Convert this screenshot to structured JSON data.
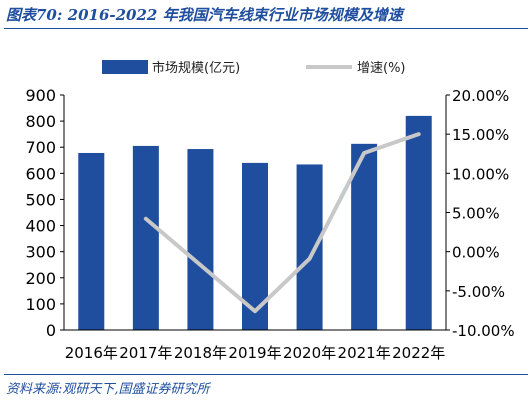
{
  "header": {
    "title": "图表70:  2016-2022 年我国汽车线束行业市场规模及增速"
  },
  "footer": {
    "source": "资料来源:观研天下,国盛证券研究所"
  },
  "colors": {
    "bar": "#1f4e9e",
    "line": "#c8c8c8",
    "accent": "#1f4e9e"
  },
  "chart_data": {
    "type": "bar",
    "categories": [
      "2016年",
      "2017年",
      "2018年",
      "2019年",
      "2020年",
      "2021年",
      "2022年"
    ],
    "series": [
      {
        "name": "市场规模(亿元)",
        "type": "bar",
        "axis": "left",
        "values": [
          678,
          705,
          693,
          640,
          634,
          713,
          820
        ]
      },
      {
        "name": "增速(%)",
        "type": "line",
        "axis": "right",
        "values": [
          null,
          4.2,
          -1.7,
          -7.6,
          -0.9,
          12.6,
          15.0
        ]
      }
    ],
    "ylim_left": [
      0,
      900
    ],
    "yticks_left": [
      "0",
      "100",
      "200",
      "300",
      "400",
      "500",
      "600",
      "700",
      "800",
      "900"
    ],
    "ylim_right": [
      -10,
      20
    ],
    "yticks_right": [
      "-10.00%",
      "-5.00%",
      "0.00%",
      "5.00%",
      "10.00%",
      "15.00%",
      "20.00%"
    ],
    "legend_position": "top-center",
    "grid": false
  }
}
